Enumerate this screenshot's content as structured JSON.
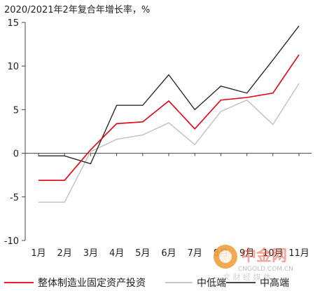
{
  "chart_data": {
    "type": "line",
    "title": "2020/2021年2年复合年增长率，%",
    "xlabel": "",
    "ylabel": "",
    "categories": [
      "1月",
      "2月",
      "3月",
      "4月",
      "5月",
      "6月",
      "7月",
      "8月",
      "9月",
      "10月",
      "11月"
    ],
    "ylim": [
      -10,
      15
    ],
    "yticks": [
      -10,
      -5,
      0,
      5,
      10,
      15
    ],
    "grid": false,
    "legend_position": "bottom",
    "series": [
      {
        "name": "整体制造业固定资产投资",
        "color": "#e60012",
        "values": [
          -3.1,
          -3.1,
          0.4,
          3.4,
          3.6,
          6.0,
          2.8,
          6.1,
          6.4,
          6.9,
          11.3
        ]
      },
      {
        "name": "中低端",
        "color": "#c0c0c0",
        "values": [
          -5.6,
          -5.6,
          0.2,
          1.6,
          2.1,
          3.5,
          1.0,
          4.8,
          6.1,
          3.3,
          8.0
        ]
      },
      {
        "name": "中高端",
        "color": "#2b2b2b",
        "values": [
          -0.3,
          -0.3,
          -1.2,
          5.5,
          5.5,
          9.0,
          5.0,
          7.7,
          6.9,
          10.7,
          14.6
        ]
      }
    ]
  },
  "watermark": {
    "brand": "中金网",
    "url": "CNGOLD.COM.CN",
    "slogan": "文 财 经 媒 体",
    "red": "#e8462f",
    "orange": "#f39c12"
  }
}
